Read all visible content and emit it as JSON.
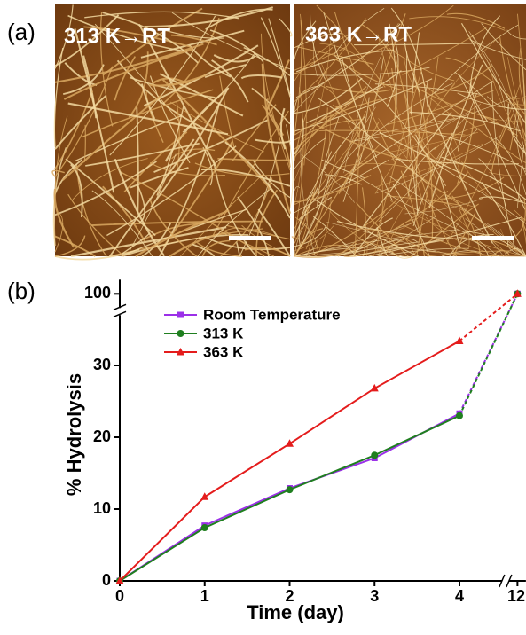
{
  "panel_a": {
    "label": "(a)",
    "images": [
      "313 K→RT",
      "363 K→RT"
    ]
  },
  "chart_data": {
    "type": "line",
    "label": "(b)",
    "x_label": "Time (day)",
    "y_label": "% Hydrolysis",
    "x": [
      0,
      1,
      2,
      3,
      4,
      12
    ],
    "series": [
      {
        "name": "Room Temperature",
        "color": "#9b30e8",
        "marker": "square",
        "values": [
          0,
          7.7,
          12.9,
          17.1,
          23.3,
          100
        ]
      },
      {
        "name": "313 K",
        "color": "#1f7f1f",
        "marker": "circle",
        "values": [
          0,
          7.4,
          12.7,
          17.5,
          23.0,
          100
        ]
      },
      {
        "name": "363 K",
        "color": "#e41c1c",
        "marker": "triangle",
        "values": [
          0,
          11.7,
          19.1,
          26.8,
          33.4,
          100
        ]
      }
    ],
    "xlim": [
      0,
      12.1
    ],
    "x_break": [
      4.5,
      11.9
    ],
    "xticks": [
      0,
      1,
      2,
      3,
      4,
      12
    ],
    "ylim": [
      0,
      101
    ],
    "y_break": [
      37,
      99
    ],
    "yticks": [
      0,
      10,
      20,
      30,
      100
    ],
    "dashed_after_x": 4
  }
}
